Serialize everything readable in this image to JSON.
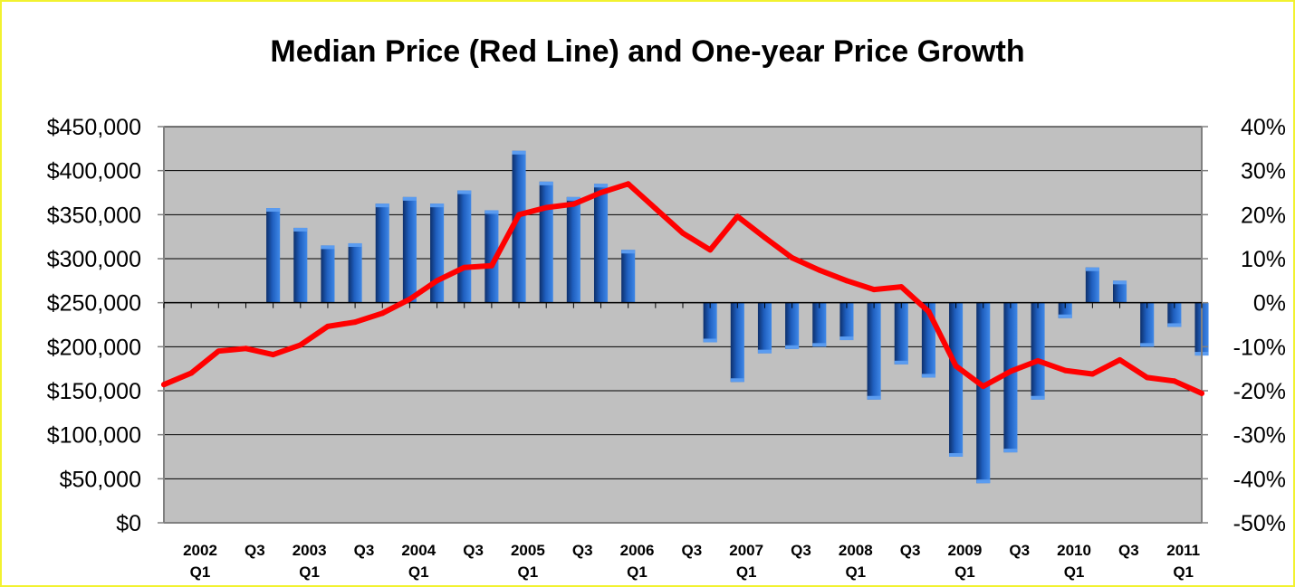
{
  "chart_data": {
    "type": "bar+line",
    "title": "Median Price (Red Line) and One-year Price Growth",
    "colors": {
      "bars": "#1f5fbf",
      "line": "#ff0000",
      "plot_background": "#c0c0c0",
      "border": "#f2f230"
    },
    "grid": true,
    "left_axis": {
      "ylim": [
        0,
        450000
      ],
      "tick_values": [
        0,
        50000,
        100000,
        150000,
        200000,
        250000,
        300000,
        350000,
        400000,
        450000
      ],
      "tick_labels": [
        "$0",
        "$50,000",
        "$100,000",
        "$150,000",
        "$200,000",
        "$250,000",
        "$300,000",
        "$350,000",
        "$400,000",
        "$450,000"
      ]
    },
    "right_axis": {
      "ylim": [
        -50,
        40
      ],
      "tick_values": [
        40,
        30,
        20,
        10,
        0,
        -10,
        -20,
        -30,
        -40,
        -50
      ],
      "tick_labels": [
        "40%",
        "30%",
        "20%",
        "10%",
        "0%",
        "-10%",
        "-20%",
        "-30%",
        "-40%",
        "-50%"
      ]
    },
    "x_tick_labels": [
      {
        "index": 0,
        "top": "2002",
        "bottom": "Q1"
      },
      {
        "index": 2,
        "top": "Q3",
        "bottom": ""
      },
      {
        "index": 4,
        "top": "2003",
        "bottom": "Q1"
      },
      {
        "index": 6,
        "top": "Q3",
        "bottom": ""
      },
      {
        "index": 8,
        "top": "2004",
        "bottom": "Q1"
      },
      {
        "index": 10,
        "top": "Q3",
        "bottom": ""
      },
      {
        "index": 12,
        "top": "2005",
        "bottom": "Q1"
      },
      {
        "index": 14,
        "top": "Q3",
        "bottom": ""
      },
      {
        "index": 16,
        "top": "2006",
        "bottom": "Q1"
      },
      {
        "index": 18,
        "top": "Q3",
        "bottom": ""
      },
      {
        "index": 20,
        "top": "2007",
        "bottom": "Q1"
      },
      {
        "index": 22,
        "top": "Q3",
        "bottom": ""
      },
      {
        "index": 24,
        "top": "2008",
        "bottom": "Q1"
      },
      {
        "index": 26,
        "top": "Q3",
        "bottom": ""
      },
      {
        "index": 28,
        "top": "2009",
        "bottom": "Q1"
      },
      {
        "index": 30,
        "top": "Q3",
        "bottom": ""
      },
      {
        "index": 32,
        "top": "2010",
        "bottom": "Q1"
      },
      {
        "index": 34,
        "top": "Q3",
        "bottom": ""
      },
      {
        "index": 36,
        "top": "2011",
        "bottom": "Q1"
      }
    ],
    "series": [
      {
        "name": "One-year Price Growth",
        "type": "bar",
        "axis": "right",
        "values": [
          null,
          null,
          null,
          null,
          21.5,
          17,
          13,
          13.5,
          22.5,
          24,
          22.5,
          25.5,
          21,
          34.5,
          27.5,
          24,
          27,
          12,
          null,
          null,
          -9,
          -18,
          -11.5,
          -10.5,
          -10,
          -8.5,
          -22,
          -14,
          -17,
          -35,
          -41,
          -34,
          -22,
          -3.5,
          8,
          5,
          -10,
          -5.5,
          -12
        ]
      },
      {
        "name": "Median Price",
        "type": "line",
        "axis": "left",
        "values": [
          157000,
          170000,
          195000,
          198000,
          191000,
          202000,
          223000,
          228000,
          238000,
          254000,
          275000,
          290000,
          292000,
          350000,
          358000,
          362000,
          375000,
          385000,
          357000,
          329000,
          310000,
          348000,
          324000,
          301000,
          287000,
          275000,
          265000,
          268000,
          240000,
          178000,
          155000,
          172000,
          184000,
          173000,
          169000,
          185000,
          165000,
          161000,
          147000
        ]
      }
    ]
  }
}
